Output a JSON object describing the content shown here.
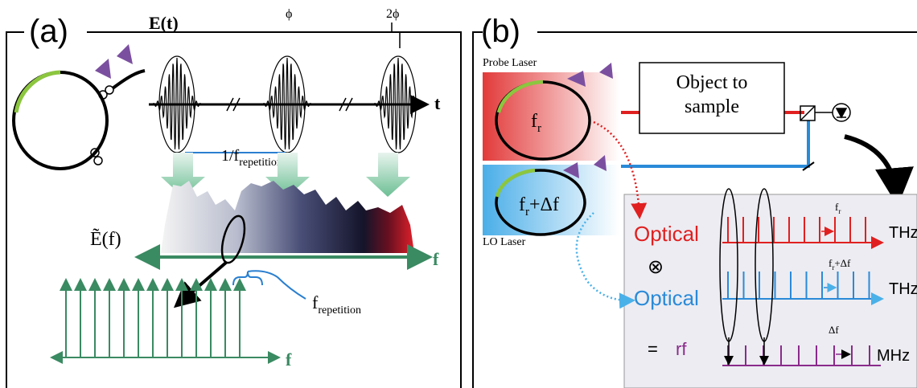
{
  "panel_a": {
    "label": "(a)",
    "time_axis": "E(t)",
    "phase_1": "ϕ",
    "phase_2": "2ϕ",
    "time_var": "t",
    "period": {
      "base": "1/f",
      "sub": "repetition"
    },
    "spectrum": "Ẽ(f)",
    "freq_axis": "f",
    "comb_axis": "f",
    "spacing": {
      "base": "f",
      "sub": "repetition"
    }
  },
  "panel_b": {
    "label": "(b)",
    "probe_laser": "Probe Laser",
    "probe_freq": {
      "base": "f",
      "sub": "r"
    },
    "object": [
      "Object to",
      "sample"
    ],
    "lo_freq": {
      "base": "f",
      "sub": "r",
      "suffix": "+Δf"
    },
    "lo_laser": "LO Laser",
    "rows": [
      {
        "name": "Optical",
        "unit": "THz",
        "spacing": {
          "base": "f",
          "sub": "r"
        }
      },
      {
        "name": "Optical",
        "unit": "THz",
        "spacing": {
          "base": "f",
          "sub": "r",
          "suffix": "+Δf"
        }
      },
      {
        "name": "rf",
        "unit": "MHz",
        "spacing": {
          "base": "Δf"
        }
      }
    ],
    "times": "⊗",
    "equals": "="
  }
}
